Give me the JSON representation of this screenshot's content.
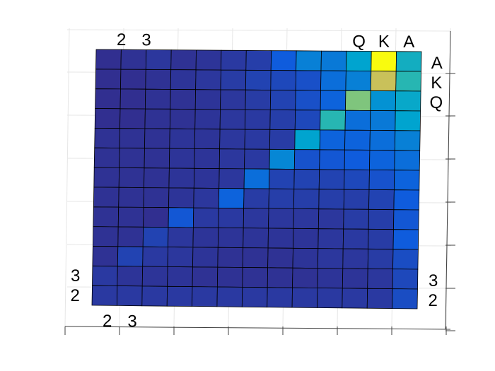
{
  "chart_data": {
    "type": "heatmap",
    "title": "",
    "grid": true,
    "colorscale": [
      "#352a87",
      "#0f5cdd",
      "#00a4cf",
      "#4dc894",
      "#c9c15a",
      "#f9fb0e"
    ],
    "row_labels": {
      "right": [
        {
          "text": "A",
          "row": 0
        },
        {
          "text": "K",
          "row": 1
        },
        {
          "text": "Q",
          "row": 2
        },
        {
          "text": "3",
          "row": 11
        },
        {
          "text": "2",
          "row": 12
        }
      ],
      "left": [
        {
          "text": "3",
          "row": 11
        },
        {
          "text": "2",
          "row": 12
        }
      ]
    },
    "col_labels": {
      "top": [
        {
          "text": "2",
          "col": 0
        },
        {
          "text": "3",
          "col": 1
        },
        {
          "text": "Q",
          "col": 10
        },
        {
          "text": "K",
          "col": 11
        },
        {
          "text": "A",
          "col": 12
        }
      ],
      "bottom": [
        {
          "text": "2",
          "col": 0
        },
        {
          "text": "3",
          "col": 1
        }
      ]
    },
    "values": [
      [
        0.02,
        0.03,
        0.05,
        0.03,
        0.04,
        0.06,
        0.08,
        0.2,
        0.3,
        0.28,
        0.4,
        1.0,
        0.45
      ],
      [
        0.02,
        0.02,
        0.03,
        0.04,
        0.05,
        0.07,
        0.1,
        0.12,
        0.15,
        0.25,
        0.3,
        0.8,
        0.5
      ],
      [
        0.02,
        0.02,
        0.03,
        0.03,
        0.04,
        0.05,
        0.07,
        0.1,
        0.15,
        0.22,
        0.68,
        0.35,
        0.42
      ],
      [
        0.02,
        0.02,
        0.03,
        0.03,
        0.04,
        0.05,
        0.06,
        0.08,
        0.12,
        0.5,
        0.25,
        0.28,
        0.4
      ],
      [
        0.03,
        0.03,
        0.03,
        0.04,
        0.04,
        0.05,
        0.06,
        0.07,
        0.4,
        0.22,
        0.22,
        0.25,
        0.3
      ],
      [
        0.03,
        0.03,
        0.03,
        0.04,
        0.04,
        0.05,
        0.06,
        0.32,
        0.16,
        0.18,
        0.2,
        0.22,
        0.25
      ],
      [
        0.03,
        0.03,
        0.03,
        0.04,
        0.04,
        0.05,
        0.25,
        0.1,
        0.1,
        0.1,
        0.12,
        0.16,
        0.22
      ],
      [
        0.03,
        0.03,
        0.03,
        0.04,
        0.05,
        0.22,
        0.07,
        0.08,
        0.08,
        0.08,
        0.08,
        0.1,
        0.2
      ],
      [
        0.03,
        0.03,
        0.02,
        0.18,
        0.06,
        0.06,
        0.05,
        0.05,
        0.05,
        0.05,
        0.07,
        0.08,
        0.18
      ],
      [
        0.03,
        0.03,
        0.1,
        0.05,
        0.04,
        0.04,
        0.04,
        0.04,
        0.04,
        0.05,
        0.06,
        0.07,
        0.2
      ],
      [
        0.03,
        0.1,
        0.06,
        0.05,
        0.04,
        0.03,
        0.03,
        0.03,
        0.04,
        0.05,
        0.05,
        0.07,
        0.14
      ],
      [
        0.06,
        0.04,
        0.04,
        0.04,
        0.03,
        0.03,
        0.03,
        0.03,
        0.03,
        0.04,
        0.04,
        0.05,
        0.12
      ],
      [
        0.0,
        0.0,
        0.0,
        0.0,
        0.0,
        0.0,
        0.0,
        0.0,
        0.0,
        0.0,
        0.0,
        0.0,
        0.0
      ]
    ]
  }
}
